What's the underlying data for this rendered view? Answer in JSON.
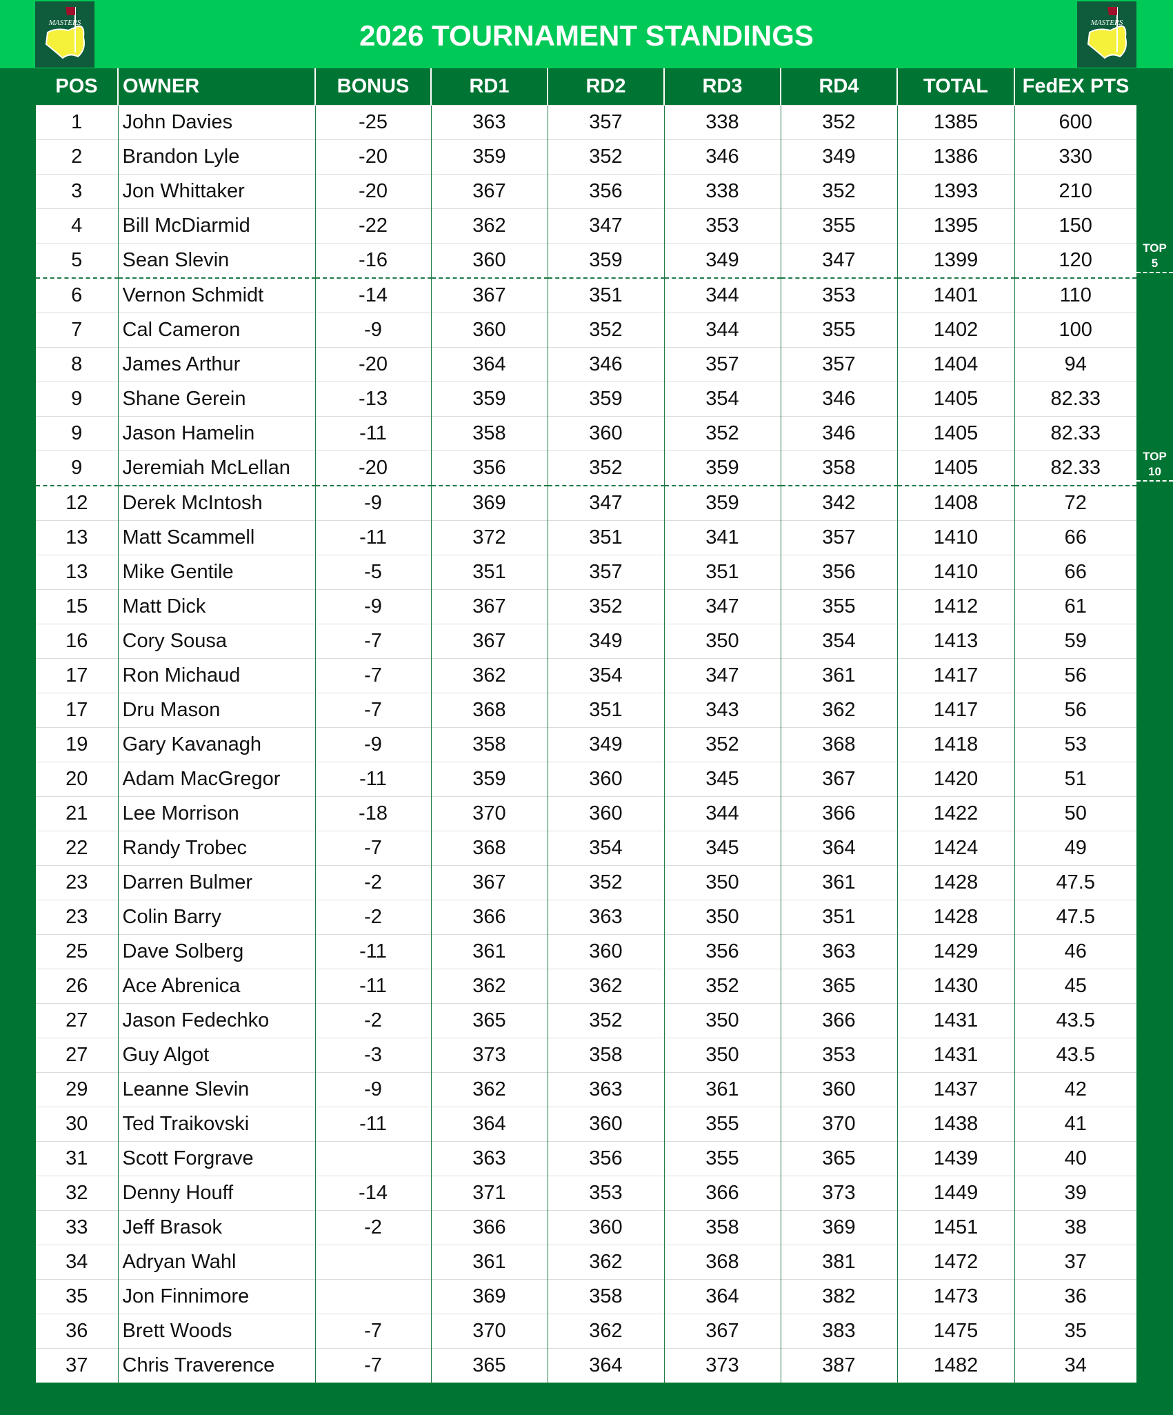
{
  "header": {
    "title": "2026 TOURNAMENT STANDINGS",
    "logo_text": "MASTERS"
  },
  "colors": {
    "top_band": "#00c957",
    "dark_green": "#007533",
    "logo_yellow": "#f5f03a",
    "flag_red": "#a0102a"
  },
  "columns": [
    "POS",
    "OWNER",
    "BONUS",
    "RD1",
    "RD2",
    "RD3",
    "RD4",
    "TOTAL",
    "FedEX PTS"
  ],
  "markers": [
    {
      "label_line1": "TOP",
      "label_line2": "5"
    },
    {
      "label_line1": "TOP",
      "label_line2": "10"
    }
  ],
  "rows": [
    [
      "1",
      "John Davies",
      "-25",
      "363",
      "357",
      "338",
      "352",
      "1385",
      "600"
    ],
    [
      "2",
      "Brandon Lyle",
      "-20",
      "359",
      "352",
      "346",
      "349",
      "1386",
      "330"
    ],
    [
      "3",
      "Jon Whittaker",
      "-20",
      "367",
      "356",
      "338",
      "352",
      "1393",
      "210"
    ],
    [
      "4",
      "Bill McDiarmid",
      "-22",
      "362",
      "347",
      "353",
      "355",
      "1395",
      "150"
    ],
    [
      "5",
      "Sean Slevin",
      "-16",
      "360",
      "359",
      "349",
      "347",
      "1399",
      "120"
    ],
    [
      "6",
      "Vernon Schmidt",
      "-14",
      "367",
      "351",
      "344",
      "353",
      "1401",
      "110"
    ],
    [
      "7",
      "Cal Cameron",
      "-9",
      "360",
      "352",
      "344",
      "355",
      "1402",
      "100"
    ],
    [
      "8",
      "James Arthur",
      "-20",
      "364",
      "346",
      "357",
      "357",
      "1404",
      "94"
    ],
    [
      "9",
      "Shane Gerein",
      "-13",
      "359",
      "359",
      "354",
      "346",
      "1405",
      "82.33"
    ],
    [
      "9",
      "Jason Hamelin",
      "-11",
      "358",
      "360",
      "352",
      "346",
      "1405",
      "82.33"
    ],
    [
      "9",
      "Jeremiah McLellan",
      "-20",
      "356",
      "352",
      "359",
      "358",
      "1405",
      "82.33"
    ],
    [
      "12",
      "Derek McIntosh",
      "-9",
      "369",
      "347",
      "359",
      "342",
      "1408",
      "72"
    ],
    [
      "13",
      "Matt Scammell",
      "-11",
      "372",
      "351",
      "341",
      "357",
      "1410",
      "66"
    ],
    [
      "13",
      "Mike Gentile",
      "-5",
      "351",
      "357",
      "351",
      "356",
      "1410",
      "66"
    ],
    [
      "15",
      "Matt Dick",
      "-9",
      "367",
      "352",
      "347",
      "355",
      "1412",
      "61"
    ],
    [
      "16",
      "Cory Sousa",
      "-7",
      "367",
      "349",
      "350",
      "354",
      "1413",
      "59"
    ],
    [
      "17",
      "Ron Michaud",
      "-7",
      "362",
      "354",
      "347",
      "361",
      "1417",
      "56"
    ],
    [
      "17",
      "Dru Mason",
      "-7",
      "368",
      "351",
      "343",
      "362",
      "1417",
      "56"
    ],
    [
      "19",
      "Gary Kavanagh",
      "-9",
      "358",
      "349",
      "352",
      "368",
      "1418",
      "53"
    ],
    [
      "20",
      "Adam MacGregor",
      "-11",
      "359",
      "360",
      "345",
      "367",
      "1420",
      "51"
    ],
    [
      "21",
      "Lee Morrison",
      "-18",
      "370",
      "360",
      "344",
      "366",
      "1422",
      "50"
    ],
    [
      "22",
      "Randy Trobec",
      "-7",
      "368",
      "354",
      "345",
      "364",
      "1424",
      "49"
    ],
    [
      "23",
      "Darren Bulmer",
      "-2",
      "367",
      "352",
      "350",
      "361",
      "1428",
      "47.5"
    ],
    [
      "23",
      "Colin Barry",
      "-2",
      "366",
      "363",
      "350",
      "351",
      "1428",
      "47.5"
    ],
    [
      "25",
      "Dave Solberg",
      "-11",
      "361",
      "360",
      "356",
      "363",
      "1429",
      "46"
    ],
    [
      "26",
      "Ace Abrenica",
      "-11",
      "362",
      "362",
      "352",
      "365",
      "1430",
      "45"
    ],
    [
      "27",
      "Jason Fedechko",
      "-2",
      "365",
      "352",
      "350",
      "366",
      "1431",
      "43.5"
    ],
    [
      "27",
      "Guy Algot",
      "-3",
      "373",
      "358",
      "350",
      "353",
      "1431",
      "43.5"
    ],
    [
      "29",
      "Leanne Slevin",
      "-9",
      "362",
      "363",
      "361",
      "360",
      "1437",
      "42"
    ],
    [
      "30",
      "Ted Traikovski",
      "-11",
      "364",
      "360",
      "355",
      "370",
      "1438",
      "41"
    ],
    [
      "31",
      "Scott Forgrave",
      "",
      "363",
      "356",
      "355",
      "365",
      "1439",
      "40"
    ],
    [
      "32",
      "Denny Houff",
      "-14",
      "371",
      "353",
      "366",
      "373",
      "1449",
      "39"
    ],
    [
      "33",
      "Jeff Brasok",
      "-2",
      "366",
      "360",
      "358",
      "369",
      "1451",
      "38"
    ],
    [
      "34",
      "Adryan Wahl",
      "",
      "361",
      "362",
      "368",
      "381",
      "1472",
      "37"
    ],
    [
      "35",
      "Jon Finnimore",
      "",
      "369",
      "358",
      "364",
      "382",
      "1473",
      "36"
    ],
    [
      "36",
      "Brett Woods",
      "-7",
      "370",
      "362",
      "367",
      "383",
      "1475",
      "35"
    ],
    [
      "37",
      "Chris Traverence",
      "-7",
      "365",
      "364",
      "373",
      "387",
      "1482",
      "34"
    ]
  ]
}
